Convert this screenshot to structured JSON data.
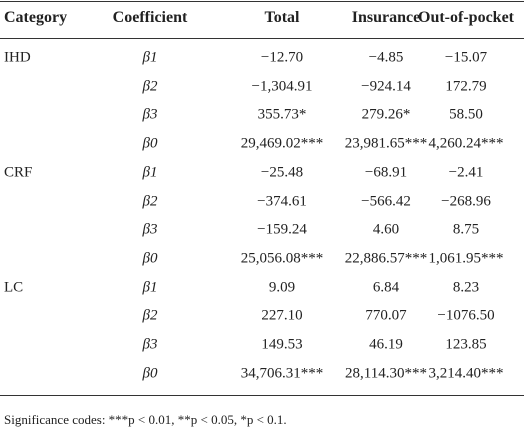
{
  "table": {
    "header": [
      "Category",
      "Coefficient",
      "Total",
      "Insurance",
      "Out-of-pocket"
    ],
    "groups": [
      {
        "category": "IHD",
        "rows": [
          [
            "β1",
            "−12.70",
            "−4.85",
            "−15.07"
          ],
          [
            "β2",
            "−1,304.91",
            "−924.14",
            "172.79"
          ],
          [
            "β3",
            "355.73*",
            "279.26*",
            "58.50"
          ],
          [
            "β0",
            "29,469.02***",
            "23,981.65***",
            "4,260.24***"
          ]
        ]
      },
      {
        "category": "CRF",
        "rows": [
          [
            "β1",
            "−25.48",
            "−68.91",
            "−2.41"
          ],
          [
            "β2",
            "−374.61",
            "−566.42",
            "−268.96"
          ],
          [
            "β3",
            "−159.24",
            "4.60",
            "8.75"
          ],
          [
            "β0",
            "25,056.08***",
            "22,886.57***",
            "1,061.95***"
          ]
        ]
      },
      {
        "category": "LC",
        "rows": [
          [
            "β1",
            "9.09",
            "6.84",
            "8.23"
          ],
          [
            "β2",
            "227.10",
            "770.07",
            "−1076.50"
          ],
          [
            "β3",
            "149.53",
            "46.19",
            "123.85"
          ],
          [
            "β0",
            "34,706.31***",
            "28,114.30***",
            "3,214.40***"
          ]
        ]
      }
    ],
    "footnote": "Significance codes: ***p < 0.01, **p < 0.05, *p < 0.1."
  }
}
